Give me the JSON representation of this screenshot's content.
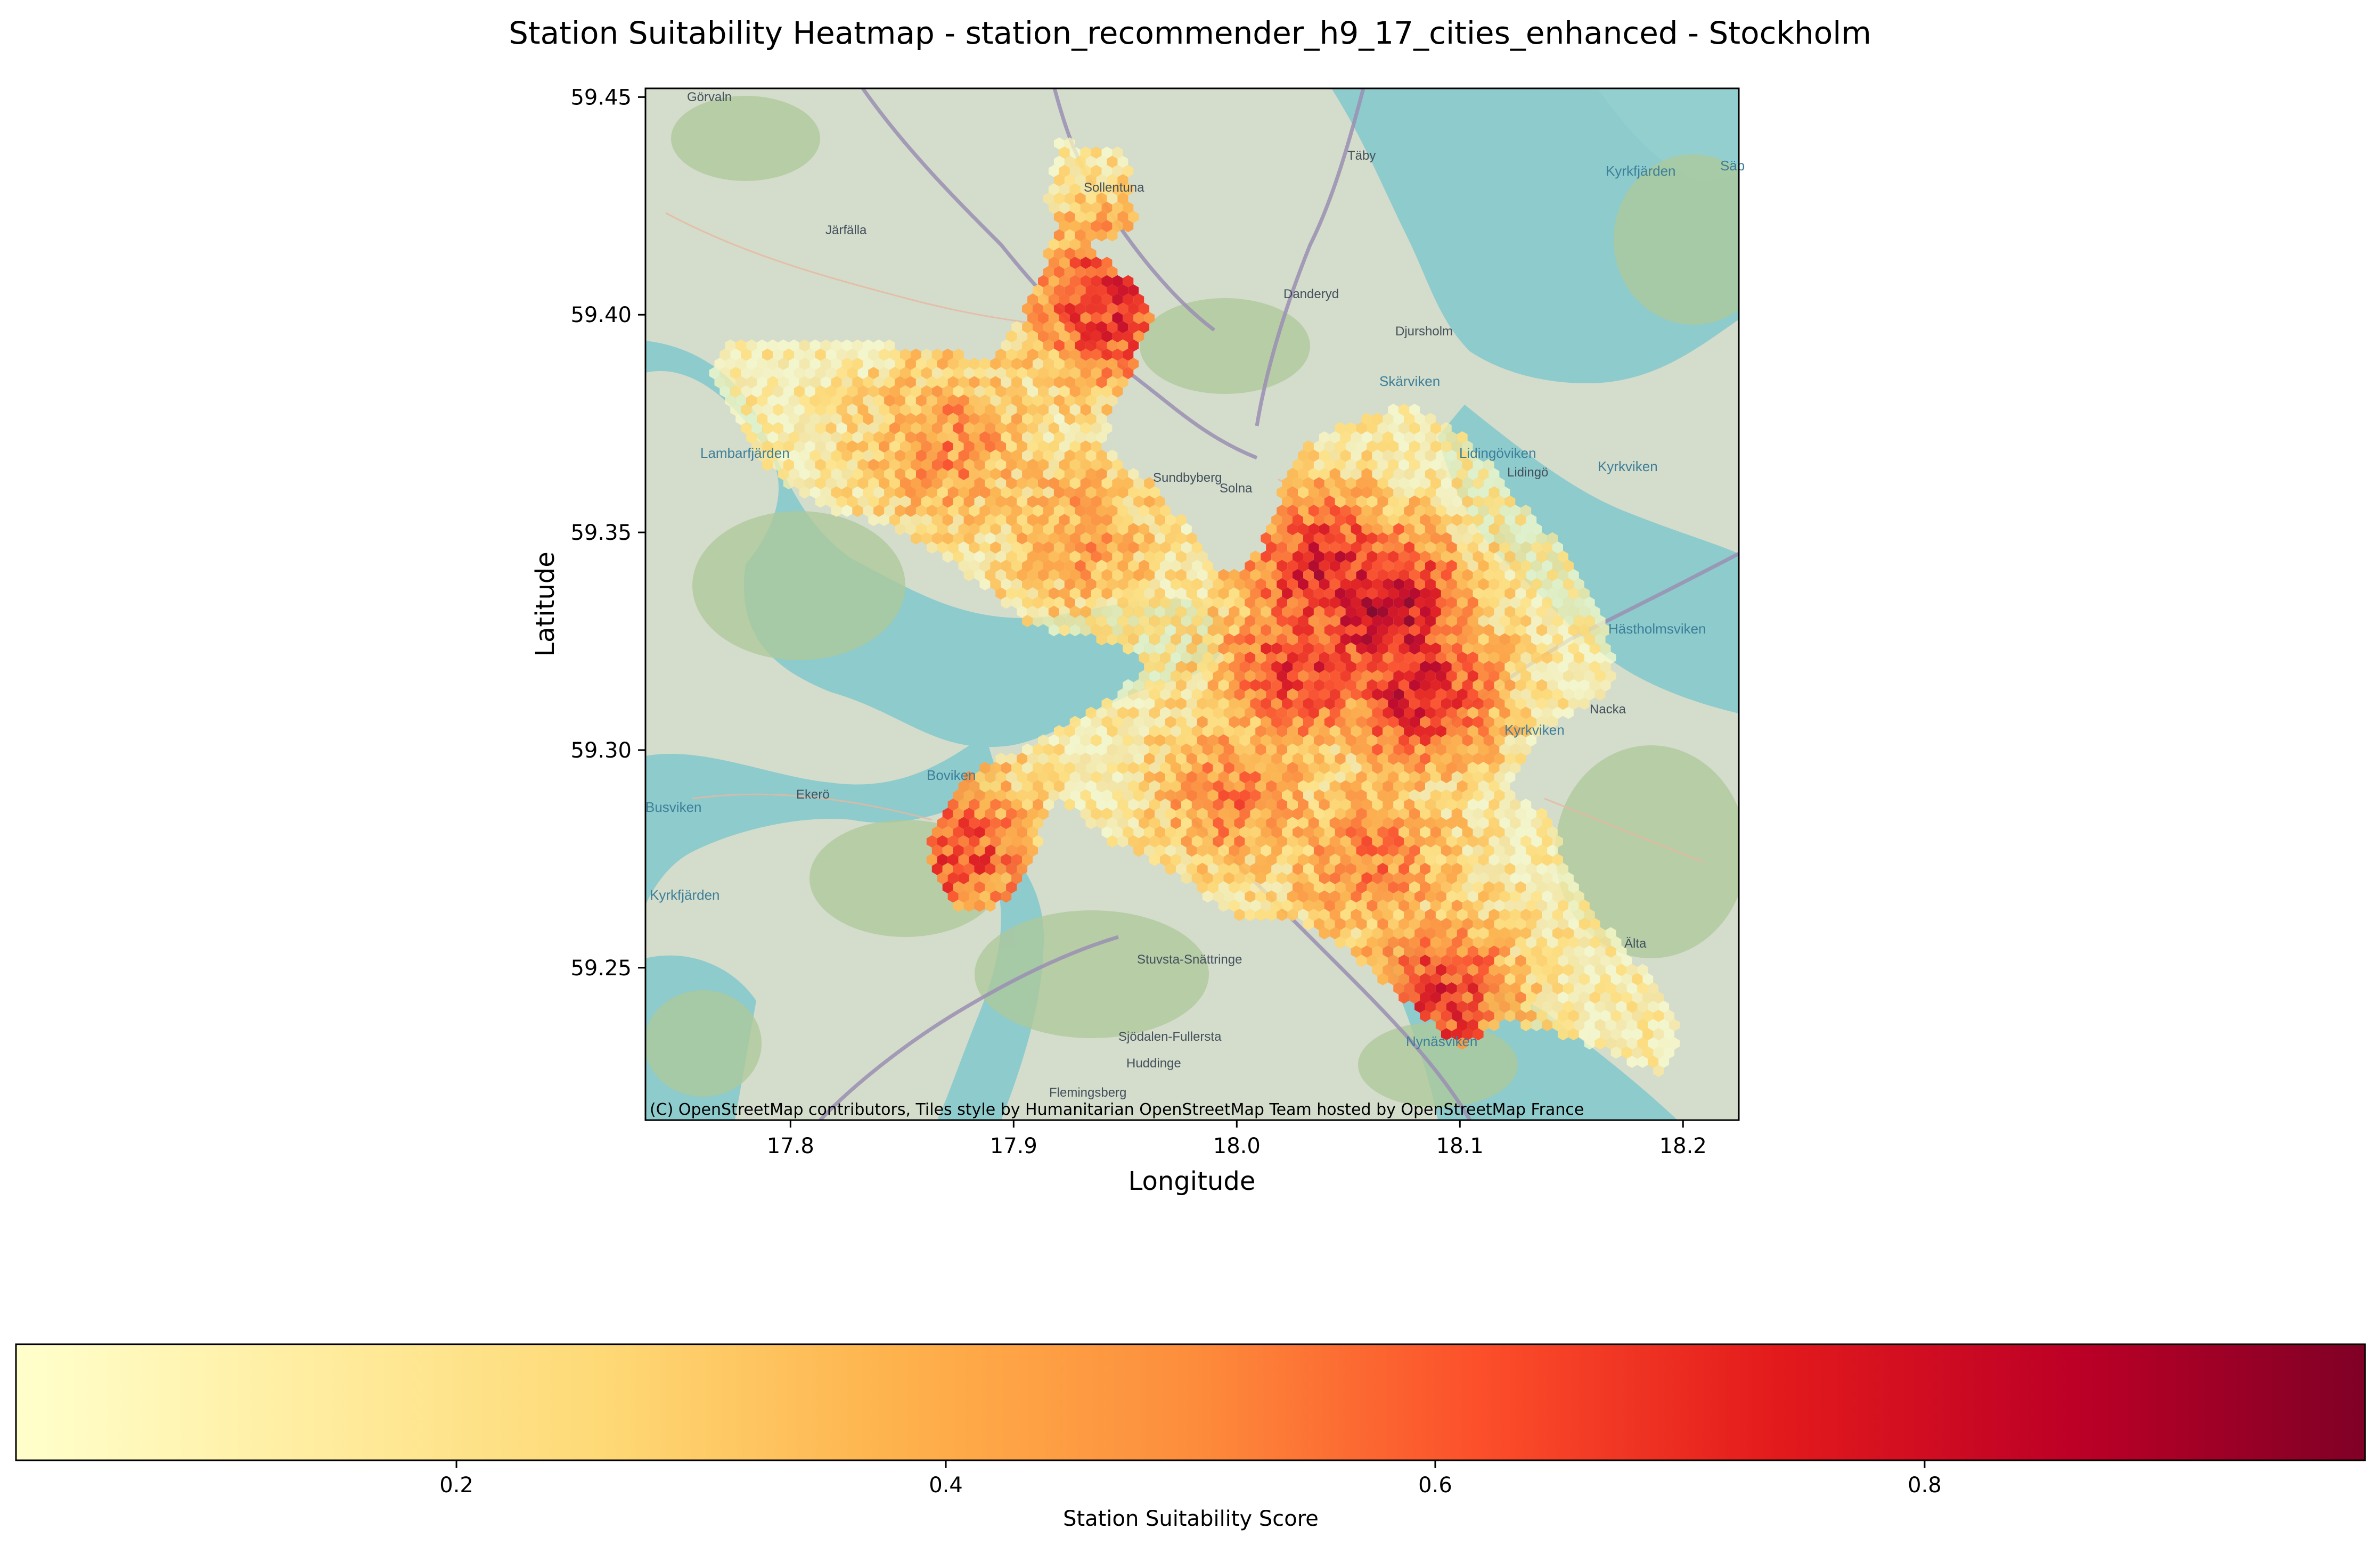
{
  "chart_data": {
    "type": "heatmap",
    "title": "Station Suitability Heatmap - station_recommender_h9_17_cities_enhanced - Stockholm",
    "xlabel": "Longitude",
    "ylabel": "Latitude",
    "xlim": [
      17.735,
      18.225
    ],
    "ylim": [
      59.215,
      59.452
    ],
    "xticks": [
      17.8,
      17.9,
      18.0,
      18.1,
      18.2
    ],
    "xtick_labels": [
      "17.8",
      "17.9",
      "18.0",
      "18.1",
      "18.2"
    ],
    "yticks": [
      59.25,
      59.3,
      59.35,
      59.4,
      59.45
    ],
    "ytick_labels": [
      "59.25",
      "59.30",
      "59.35",
      "59.40",
      "59.45"
    ],
    "colormap": "YlOrRd",
    "colorbar": {
      "label": "Station Suitability Score",
      "range": [
        0.02,
        0.98
      ],
      "ticks": [
        0.2,
        0.4,
        0.6,
        0.8
      ],
      "tick_labels": [
        "0.2",
        "0.4",
        "0.6",
        "0.8"
      ],
      "colors": [
        "#ffffcc",
        "#ffeda0",
        "#fed976",
        "#feb24c",
        "#fd8d3c",
        "#fc4e2a",
        "#e31a1c",
        "#bd0026",
        "#800026"
      ]
    },
    "hotspots": [
      {
        "lon": 18.066,
        "lat": 59.332,
        "score": 0.95
      },
      {
        "lon": 18.04,
        "lat": 59.34,
        "score": 0.85
      },
      {
        "lon": 18.08,
        "lat": 59.315,
        "score": 0.85
      },
      {
        "lon": 18.03,
        "lat": 59.32,
        "score": 0.75
      },
      {
        "lon": 17.945,
        "lat": 59.403,
        "score": 0.8
      },
      {
        "lon": 18.09,
        "lat": 59.243,
        "score": 0.75
      },
      {
        "lon": 17.875,
        "lat": 59.277,
        "score": 0.7
      },
      {
        "lon": 18.0,
        "lat": 59.29,
        "score": 0.55
      },
      {
        "lon": 18.06,
        "lat": 59.275,
        "score": 0.55
      },
      {
        "lon": 17.87,
        "lat": 59.37,
        "score": 0.5
      },
      {
        "lon": 17.93,
        "lat": 59.35,
        "score": 0.45
      }
    ],
    "attribution": "(C) OpenStreetMap contributors, Tiles style by Humanitarian OpenStreetMap Team hosted by OpenStreetMap France",
    "basemap_labels": [
      "Görvaln",
      "Täby",
      "Sollentuna",
      "Järfälla",
      "Kyrkfjärden",
      "Säb",
      "Danderyd",
      "Djursholm",
      "Skärviken",
      "Lambarfjärden",
      "Lidingöviken",
      "Lidingö",
      "Kyrkviken",
      "Sundbyberg",
      "Solna",
      "Hästholmsviken",
      "Nacka",
      "Kyrkviken",
      "Boviken",
      "Ekerö",
      "Busviken",
      "Kyrkfjärden",
      "Stuvsta-Snättringe",
      "Älta",
      "Sjödalen-Fullersta",
      "Huddinge",
      "Nynäsviken",
      "Flemingsberg"
    ]
  }
}
